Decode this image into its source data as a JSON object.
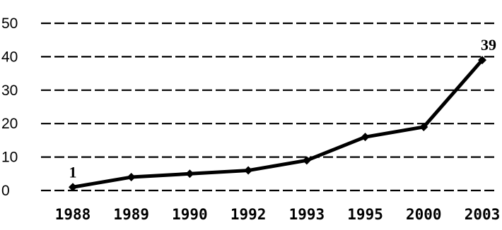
{
  "chart_data": {
    "type": "line",
    "title": "",
    "xlabel": "",
    "ylabel": "",
    "categories": [
      "1988",
      "1989",
      "1990",
      "1992",
      "1993",
      "1995",
      "2000",
      "2003"
    ],
    "series": [
      {
        "values": [
          1,
          4,
          5,
          6,
          9,
          16,
          19,
          39
        ]
      }
    ],
    "data_labels": [
      {
        "index": 0,
        "text": "1"
      },
      {
        "index": 7,
        "text": "39"
      }
    ],
    "ylim": [
      0,
      50
    ],
    "yticks": [
      "0",
      "10",
      "20",
      "30",
      "40",
      "50"
    ],
    "grid": true,
    "legend": "none",
    "colors": {
      "line": "#000000",
      "grid": "#000000",
      "background": "#ffffff"
    }
  }
}
